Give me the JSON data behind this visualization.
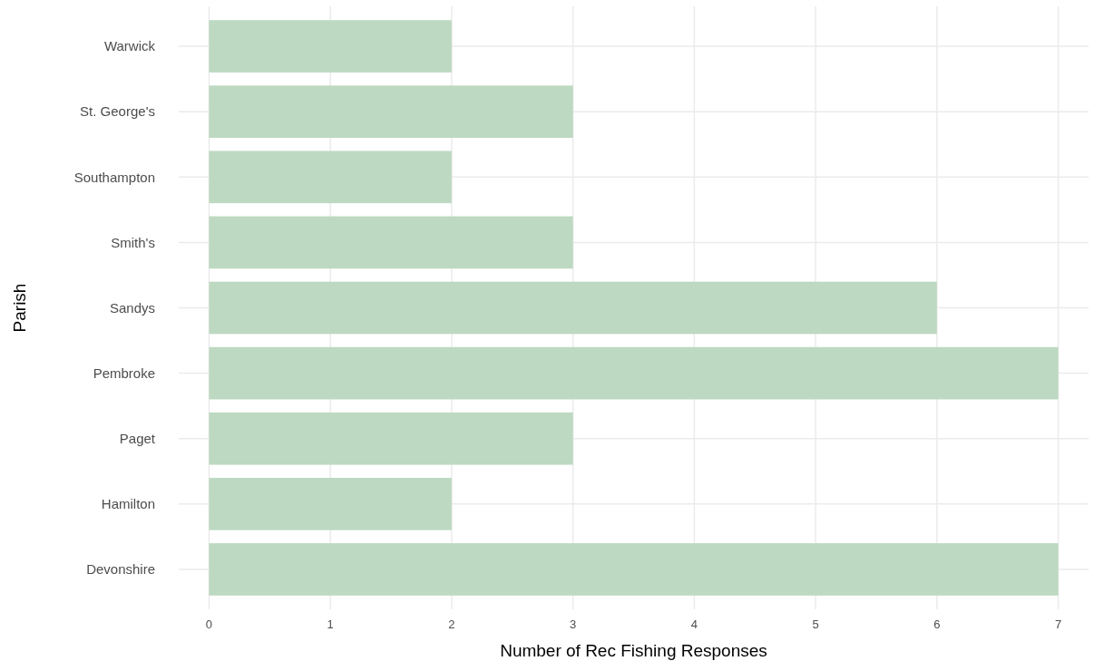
{
  "chart_data": {
    "type": "bar",
    "orientation": "horizontal",
    "xlabel": "Number of Rec Fishing Responses",
    "ylabel": "Parish",
    "categories": [
      "Warwick",
      "St. George's",
      "Southampton",
      "Smith's",
      "Sandys",
      "Pembroke",
      "Paget",
      "Hamilton",
      "Devonshire"
    ],
    "values": [
      2,
      3,
      2,
      3,
      6,
      7,
      3,
      2,
      7
    ],
    "color": "#bdd9c1",
    "xlim": [
      -0.25,
      7.25
    ],
    "xticks": [
      0,
      1,
      2,
      3,
      4,
      5,
      6,
      7
    ],
    "grid": true
  }
}
